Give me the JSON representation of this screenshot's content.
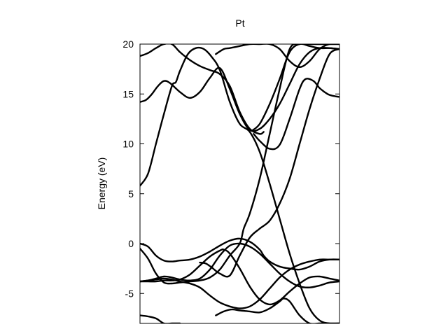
{
  "chart_data": {
    "type": "line",
    "title": "Pt",
    "xlabel": "",
    "ylabel": "Energy (eV)",
    "xlim": [
      0,
      1
    ],
    "ylim": [
      -8,
      20
    ],
    "yticks": [
      -5,
      0,
      5,
      10,
      15,
      20
    ],
    "grid": false,
    "legend": "none",
    "line_color": "#000000",
    "series": [
      {
        "x": [
          0,
          0.04,
          0.08,
          0.12,
          0.16,
          0.18,
          0.2,
          0.24,
          0.28,
          0.32,
          0.36,
          0.4,
          0.45,
          0.5,
          0.55,
          0.6,
          0.65,
          0.7,
          0.75,
          0.8,
          0.85,
          0.9,
          0.95,
          1.0
        ],
        "y": [
          5.8,
          7.0,
          10.0,
          13.0,
          15.8,
          16.2,
          17.3,
          19.0,
          19.6,
          19.5,
          18.7,
          17.4,
          14.2,
          12.0,
          11.2,
          9.2,
          6.0,
          2.5,
          -1.0,
          -4.0,
          -6.5,
          -7.7,
          -8.0,
          -8.0
        ]
      },
      {
        "x": [
          0,
          0.03,
          0.06,
          0.09,
          0.12,
          0.15,
          0.2,
          0.25,
          0.3,
          0.35,
          0.4,
          0.45,
          0.5,
          0.55,
          0.6,
          0.65,
          0.7,
          0.75,
          0.8,
          0.85,
          0.9,
          0.95,
          1.0
        ],
        "y": [
          14.2,
          14.4,
          15.0,
          15.8,
          16.3,
          16.1,
          15.2,
          14.6,
          15.2,
          16.6,
          17.6,
          15.5,
          13.0,
          11.4,
          11.5,
          12.5,
          14.0,
          16.0,
          18.0,
          19.2,
          19.6,
          19.6,
          19.5
        ]
      },
      {
        "x": [
          0,
          0.04,
          0.08,
          0.12,
          0.16,
          0.2,
          0.25,
          0.3,
          0.35,
          0.4,
          0.45,
          0.5,
          0.55,
          0.6,
          0.62
        ],
        "y": [
          18.8,
          19.1,
          19.6,
          20.0,
          20.0,
          19.2,
          18.4,
          17.8,
          17.4,
          17.0,
          15.8,
          13.2,
          11.5,
          11.0,
          11.2
        ]
      },
      {
        "x": [
          0.56,
          0.6,
          0.65,
          0.7,
          0.75,
          0.8,
          0.85,
          0.9,
          0.95,
          1.0
        ],
        "y": [
          11.3,
          12.0,
          14.0,
          16.5,
          19.2,
          20.0,
          19.8,
          19.6,
          19.6,
          19.5
        ]
      },
      {
        "x": [
          0.57,
          0.6,
          0.65,
          0.7,
          0.75,
          0.8,
          0.83,
          0.87,
          0.9,
          0.94,
          0.97,
          1.0
        ],
        "y": [
          11.0,
          10.3,
          9.5,
          9.9,
          12.5,
          15.5,
          16.5,
          16.3,
          15.6,
          15.0,
          14.8,
          14.7
        ]
      },
      {
        "x": [
          0.38,
          0.42,
          0.45,
          0.5,
          0.55,
          0.6,
          0.65,
          0.7,
          0.75,
          0.8,
          0.85,
          0.9,
          0.95,
          1.0
        ],
        "y": [
          19.0,
          19.5,
          19.6,
          19.8,
          20.0,
          20.0,
          20.0,
          19.5,
          18.3,
          17.7,
          18.3,
          19.5,
          20.0,
          20.0
        ]
      },
      {
        "x": [
          0,
          0.04,
          0.08,
          0.12,
          0.16,
          0.2,
          0.25,
          0.3,
          0.35,
          0.4,
          0.45,
          0.5,
          0.55,
          0.6,
          0.62,
          0.65,
          0.7,
          0.75,
          0.8,
          0.85,
          0.9,
          0.95,
          1.0
        ],
        "y": [
          0.0,
          -0.3,
          -1.2,
          -1.7,
          -1.8,
          -1.7,
          -1.6,
          -1.3,
          -0.8,
          -0.2,
          0.3,
          0.5,
          0.2,
          -0.6,
          -1.2,
          -1.8,
          -2.3,
          -2.5,
          -2.6,
          -2.3,
          -1.8,
          -1.6,
          -1.6
        ]
      },
      {
        "x": [
          0,
          0.04,
          0.08,
          0.12,
          0.16,
          0.2,
          0.25,
          0.3,
          0.35,
          0.4,
          0.45,
          0.5,
          0.52,
          0.55,
          0.6,
          0.65,
          0.7,
          0.75,
          0.8,
          0.85,
          0.9,
          0.95,
          1.0
        ],
        "y": [
          -0.5,
          -1.5,
          -3.0,
          -3.9,
          -4.0,
          -3.9,
          -3.8,
          -3.7,
          -3.4,
          -2.6,
          -1.2,
          0.0,
          1.5,
          3.0,
          6.5,
          11.0,
          15.5,
          19.5,
          20.0,
          20.0,
          20.0,
          20.0,
          20.0
        ]
      },
      {
        "x": [
          0,
          0.04,
          0.08,
          0.12,
          0.16,
          0.2,
          0.25,
          0.3,
          0.35,
          0.4,
          0.45,
          0.5,
          0.55,
          0.6,
          0.65,
          0.7,
          0.75,
          0.8,
          0.85,
          0.9,
          0.95,
          1.0
        ],
        "y": [
          -3.8,
          -3.7,
          -3.5,
          -3.3,
          -3.4,
          -3.6,
          -3.7,
          -3.5,
          -2.6,
          -1.2,
          -0.2,
          0.0,
          -0.3,
          -1.0,
          -2.0,
          -3.0,
          -3.8,
          -4.3,
          -4.4,
          -4.2,
          -3.9,
          -3.8
        ]
      },
      {
        "x": [
          0,
          0.04,
          0.08,
          0.12,
          0.16,
          0.2,
          0.25,
          0.3,
          0.35,
          0.4,
          0.42,
          0.45,
          0.5,
          0.55,
          0.6,
          0.65,
          0.7,
          0.75,
          0.8,
          0.85,
          0.9,
          0.95,
          1.0
        ],
        "y": [
          -3.8,
          -3.8,
          -3.8,
          -3.7,
          -3.7,
          -3.6,
          -3.1,
          -2.2,
          -1.3,
          -0.7,
          -0.6,
          -1.0,
          -2.5,
          -4.3,
          -5.6,
          -6.1,
          -5.7,
          -4.8,
          -4.0,
          -3.4,
          -3.3,
          -3.5,
          -3.7
        ]
      },
      {
        "x": [
          0.3,
          0.33,
          0.36,
          0.4,
          0.45,
          0.5,
          0.55,
          0.6,
          0.65,
          0.7,
          0.75,
          0.8,
          0.85,
          0.9,
          0.95,
          1.0
        ],
        "y": [
          -1.9,
          -2.0,
          -2.4,
          -3.0,
          -3.2,
          -1.2,
          0.6,
          1.5,
          2.3,
          4.0,
          6.5,
          10.0,
          13.5,
          16.5,
          19.0,
          19.5
        ]
      },
      {
        "x": [
          0,
          0.04,
          0.08,
          0.12,
          0.16,
          0.2,
          0.25,
          0.3,
          0.35,
          0.4,
          0.45,
          0.5,
          0.55,
          0.6,
          0.65,
          0.7,
          0.75,
          0.8,
          0.85,
          0.9,
          0.95,
          1.0
        ],
        "y": [
          -3.8,
          -3.7,
          -3.6,
          -3.5,
          -3.6,
          -3.8,
          -4.0,
          -4.4,
          -5.2,
          -5.9,
          -6.3,
          -6.5,
          -6.3,
          -5.6,
          -4.5,
          -3.4,
          -2.6,
          -2.1,
          -1.8,
          -1.6,
          -1.6,
          -1.6
        ]
      },
      {
        "x": [
          0.38,
          0.42,
          0.46,
          0.5,
          0.55,
          0.6,
          0.65,
          0.7,
          0.72,
          0.75,
          0.8,
          0.85,
          0.9,
          0.95,
          1.0
        ],
        "y": [
          -7.2,
          -6.8,
          -6.6,
          -6.7,
          -6.8,
          -6.9,
          -6.5,
          -5.8,
          -5.5,
          -5.8,
          -7.2,
          -8.0,
          -8.0,
          -8.0,
          -8.0
        ]
      },
      {
        "x": [
          0,
          0.04,
          0.08,
          0.12,
          0.16,
          0.2
        ],
        "y": [
          -7.2,
          -7.3,
          -7.5,
          -8.0,
          -8.0,
          -8.0
        ]
      }
    ]
  }
}
